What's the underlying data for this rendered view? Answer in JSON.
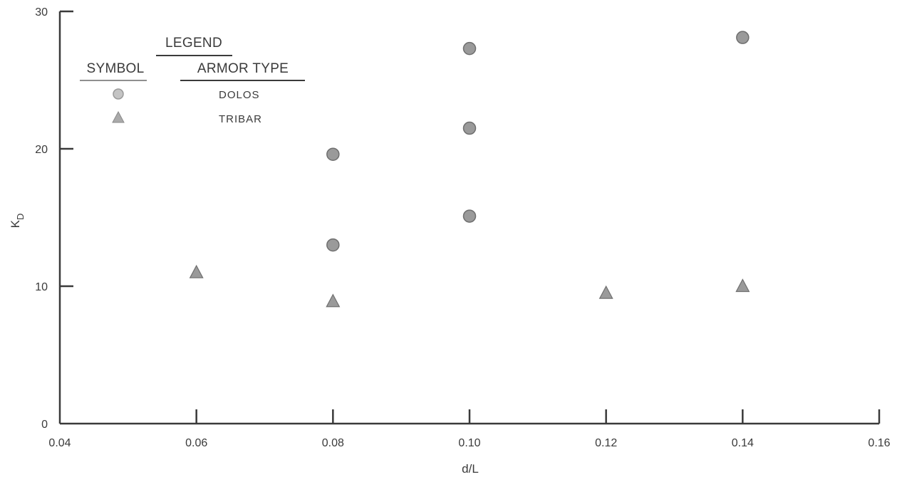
{
  "chart_data": {
    "type": "scatter",
    "xlabel": "d/L",
    "ylabel": "K",
    "ylabel_subscript": "D",
    "xlim": [
      0.04,
      0.16
    ],
    "ylim": [
      0,
      30
    ],
    "x_ticks": [
      0.04,
      0.06,
      0.08,
      0.1,
      0.12,
      0.14,
      0.16
    ],
    "x_tick_labels": [
      "0.04",
      "0.06",
      "0.08",
      "0.10",
      "0.12",
      "0.14",
      "0.16"
    ],
    "y_ticks": [
      0,
      10,
      20,
      30
    ],
    "y_tick_labels": [
      "0",
      "10",
      "20",
      "30"
    ],
    "grid": false,
    "legend": {
      "placement": "top-left",
      "title": "LEGEND",
      "col_symbol": "SYMBOL",
      "col_type": "ARMOR TYPE",
      "entries": [
        {
          "marker": "circle",
          "label": "DOLOS"
        },
        {
          "marker": "triangle",
          "label": "TRIBAR"
        }
      ]
    },
    "series": [
      {
        "name": "DOLOS",
        "marker": "circle",
        "points": [
          {
            "x": 0.08,
            "y": 19.6
          },
          {
            "x": 0.08,
            "y": 13.0
          },
          {
            "x": 0.1,
            "y": 27.3
          },
          {
            "x": 0.1,
            "y": 21.5
          },
          {
            "x": 0.1,
            "y": 15.1
          },
          {
            "x": 0.14,
            "y": 28.1
          }
        ]
      },
      {
        "name": "TRIBAR",
        "marker": "triangle",
        "points": [
          {
            "x": 0.06,
            "y": 11.0
          },
          {
            "x": 0.08,
            "y": 8.9
          },
          {
            "x": 0.12,
            "y": 9.5
          },
          {
            "x": 0.14,
            "y": 10.0
          }
        ]
      }
    ],
    "colors": {
      "axis": "#3a3a3a",
      "marker_fill": "#9a9a9a",
      "marker_stroke": "#6f6f6f",
      "text": "#3a3a3a"
    }
  }
}
